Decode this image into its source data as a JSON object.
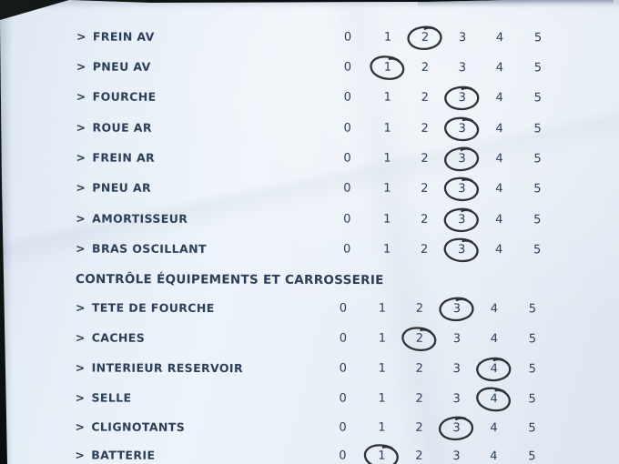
{
  "colors": {
    "background": "#0c0f11",
    "paper": "#edf3fa",
    "paper_dim": "#dee8f3",
    "ink_text": "#2c3f58",
    "pen_mark": "#1d2126"
  },
  "row_marker": ">",
  "rating_scale": [
    "0",
    "1",
    "2",
    "3",
    "4",
    "5"
  ],
  "sections": [
    {
      "header": "",
      "rows": [
        {
          "label": "FREIN AV",
          "circled": 2
        },
        {
          "label": "PNEU AV",
          "circled": 1
        },
        {
          "label": "FOURCHE",
          "circled": 3
        },
        {
          "label": "ROUE AR",
          "circled": 3
        },
        {
          "label": "FREIN AR",
          "circled": 3
        },
        {
          "label": "PNEU AR",
          "circled": 3
        },
        {
          "label": "AMORTISSEUR",
          "circled": 3
        },
        {
          "label": "BRAS OSCILLANT",
          "circled": 3
        }
      ]
    },
    {
      "header": "CONTRÔLE ÉQUIPEMENTS ET CARROSSERIE",
      "rows": [
        {
          "label": "TETE DE FOURCHE",
          "circled": 3
        },
        {
          "label": "CACHES",
          "circled": 2
        },
        {
          "label": "INTERIEUR RESERVOIR",
          "circled": 4
        },
        {
          "label": "SELLE",
          "circled": 4
        },
        {
          "label": "CLIGNOTANTS",
          "circled": 3
        },
        {
          "label": "BATTERIE",
          "circled": 1
        }
      ]
    }
  ]
}
